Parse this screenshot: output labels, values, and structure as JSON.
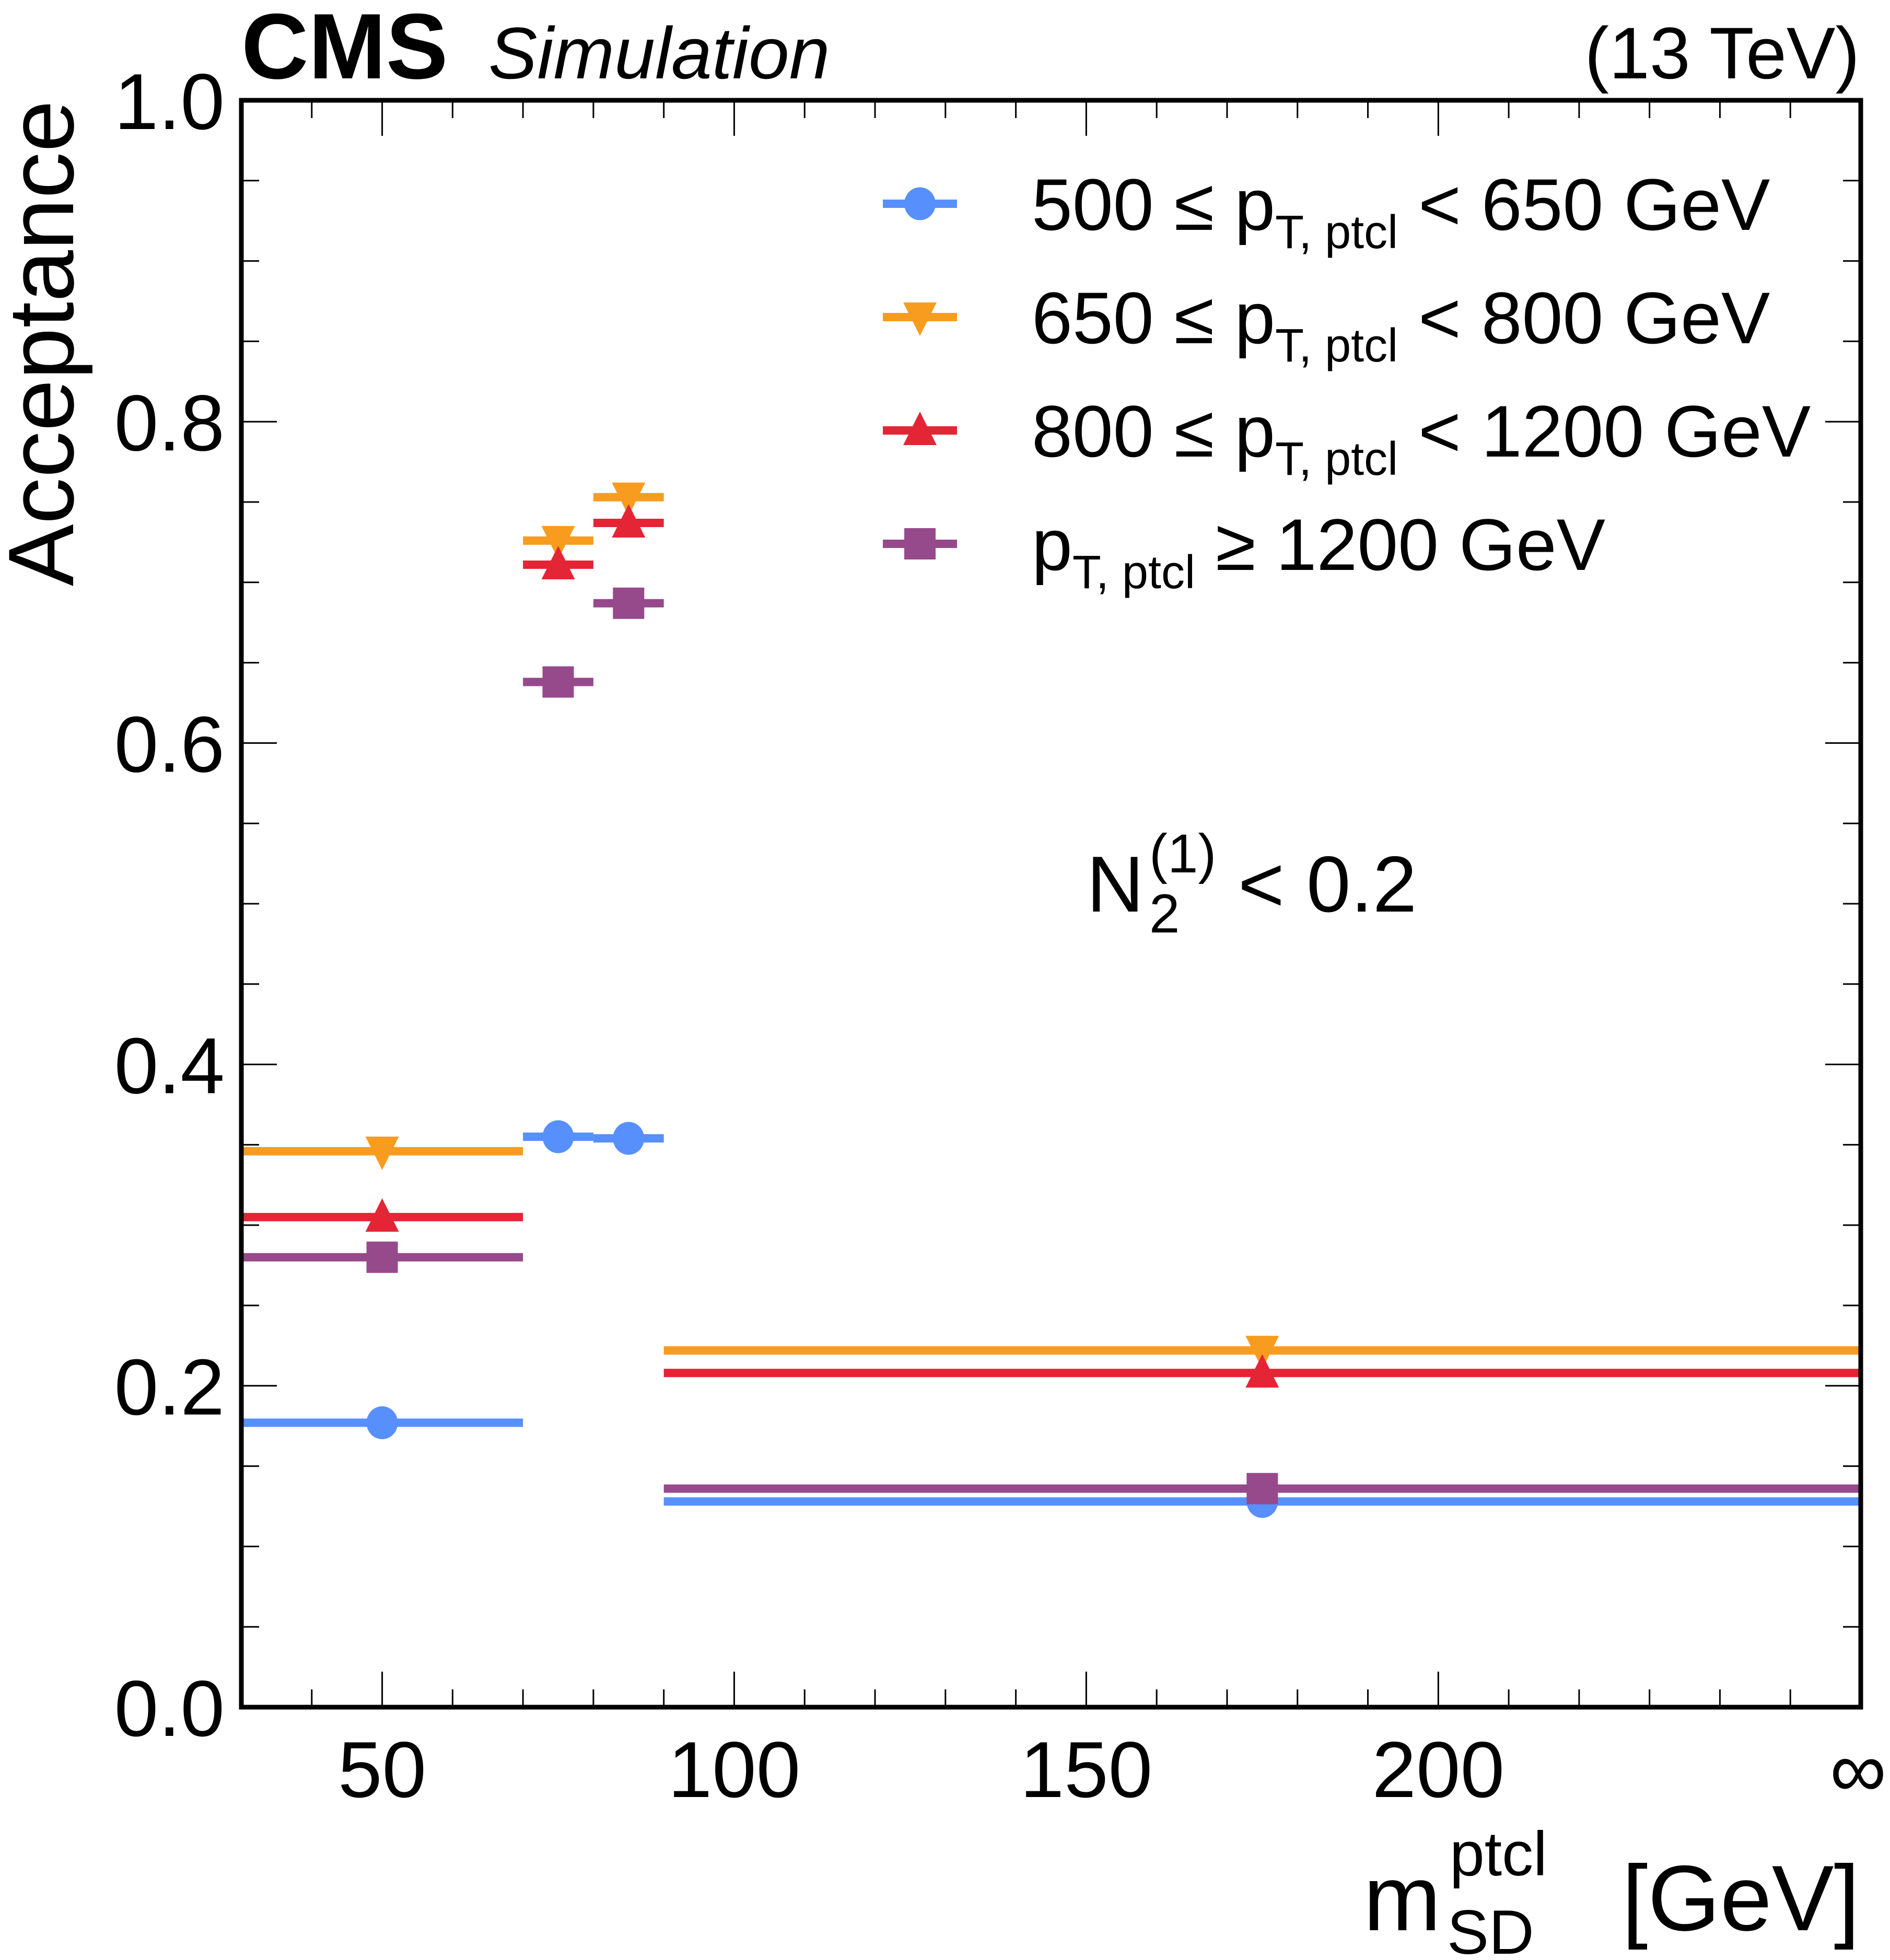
{
  "header": {
    "experiment": "CMS",
    "status": "Simulation",
    "energy": "(13 TeV)"
  },
  "annotation": {
    "base": "N",
    "subscript": "2",
    "superscript": "(1)",
    "rest": "< 0.2"
  },
  "chart_data": {
    "type": "scatter",
    "title": "",
    "xlabel": "m_SD^ptcl [GeV]",
    "xlabel_parts": {
      "base": "m",
      "sub": "SD",
      "sup": "ptcl",
      "unit": "[GeV]"
    },
    "ylabel": "Acceptance",
    "xlim": [
      30,
      260
    ],
    "ylim": [
      0.0,
      1.0
    ],
    "x_ticks": [
      {
        "value": 50,
        "label": "50"
      },
      {
        "value": 100,
        "label": "100"
      },
      {
        "value": 150,
        "label": "150"
      },
      {
        "value": 200,
        "label": "200"
      },
      {
        "value": 260,
        "label": "∞"
      }
    ],
    "x_minor_step": 10,
    "y_ticks": [
      {
        "value": 0.0,
        "label": "0.0"
      },
      {
        "value": 0.2,
        "label": "0.2"
      },
      {
        "value": 0.4,
        "label": "0.4"
      },
      {
        "value": 0.6,
        "label": "0.6"
      },
      {
        "value": 0.8,
        "label": "0.8"
      },
      {
        "value": 1.0,
        "label": "1.0"
      }
    ],
    "y_minor_step": 0.05,
    "grid": false,
    "legend_position": "top-right",
    "bins": [
      {
        "low": 30,
        "high": 70,
        "center": 50
      },
      {
        "low": 70,
        "high": 80,
        "center": 75
      },
      {
        "low": 80,
        "high": 90,
        "center": 85
      },
      {
        "low": 90,
        "high": "inf",
        "center": 175
      }
    ],
    "series": [
      {
        "name": "500 ≤ pT,ptcl < 650 GeV",
        "legend": {
          "pre": "500 ≤ ",
          "post": " < 650 GeV"
        },
        "marker": "circle",
        "color": "#5790fc",
        "values": [
          0.177,
          0.355,
          0.354,
          0.128
        ]
      },
      {
        "name": "650 ≤ pT,ptcl < 800 GeV",
        "legend": {
          "pre": "650 ≤ ",
          "post": " < 800 GeV"
        },
        "marker": "triangle-down",
        "color": "#f89c20",
        "values": [
          0.346,
          0.726,
          0.753,
          0.222
        ]
      },
      {
        "name": "800 ≤ pT,ptcl < 1200 GeV",
        "legend": {
          "pre": "800 ≤ ",
          "post": " < 1200 GeV"
        },
        "marker": "triangle-up",
        "color": "#e42536",
        "values": [
          0.305,
          0.711,
          0.737,
          0.208
        ]
      },
      {
        "name": "pT,ptcl ≥ 1200 GeV",
        "legend": {
          "pre": "",
          "post": " ≥ 1200 GeV"
        },
        "marker": "square",
        "color": "#964a8b",
        "values": [
          0.28,
          0.638,
          0.687,
          0.136
        ]
      }
    ],
    "legend_symbol": {
      "base": "p",
      "sub": "T, ptcl"
    }
  }
}
